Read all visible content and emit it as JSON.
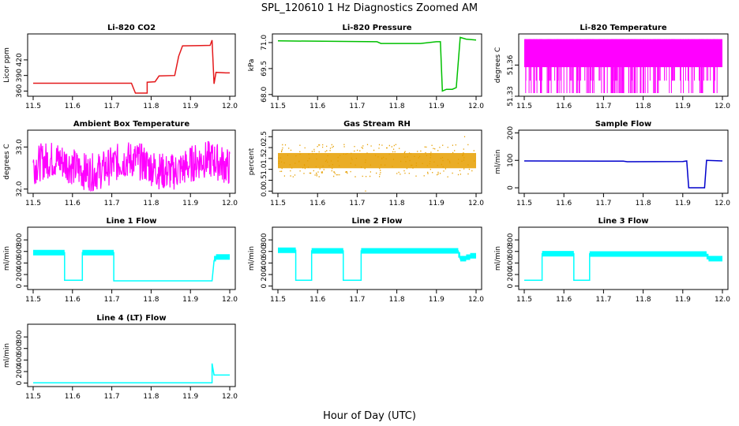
{
  "title": "SPL_120610  1 Hz Diagnostics Zoomed AM",
  "xlabel": "Hour of Day (UTC)",
  "colors": {
    "red": "#e41a1c",
    "green": "#00c000",
    "magenta": "#ff00ff",
    "orange": "#e69f00",
    "blue": "#0000cc",
    "cyan": "#00ffff"
  },
  "chart_data": [
    {
      "type": "line",
      "title": "Li-820 CO2",
      "ylabel": "Licor ppm",
      "xlim": [
        11.48,
        12.02
      ],
      "ylim": [
        350,
        470
      ],
      "xticks": [
        "11.5",
        "11.6",
        "11.7",
        "11.8",
        "11.9",
        "12.0"
      ],
      "yticks": [
        "360",
        "390",
        "420"
      ],
      "color": "red",
      "series": [
        {
          "values": [
            [
              11.5,
              375
            ],
            [
              11.75,
              375
            ],
            [
              11.76,
              356
            ],
            [
              11.79,
              356
            ],
            [
              11.79,
              377
            ],
            [
              11.81,
              378
            ],
            [
              11.82,
              389
            ],
            [
              11.86,
              390
            ],
            [
              11.87,
              427
            ],
            [
              11.88,
              447
            ],
            [
              11.95,
              448
            ],
            [
              11.955,
              458
            ],
            [
              11.96,
              374
            ],
            [
              11.965,
              396
            ],
            [
              11.99,
              395
            ],
            [
              12.0,
              395
            ]
          ]
        }
      ]
    },
    {
      "type": "line",
      "title": "Li-820 Pressure",
      "ylabel": "kPa",
      "xlim": [
        11.48,
        12.02
      ],
      "ylim": [
        67.9,
        71.5
      ],
      "xticks": [
        "11.5",
        "11.6",
        "11.7",
        "11.8",
        "11.9",
        "12.0"
      ],
      "yticks": [
        "68.0",
        "69.5",
        "71.0"
      ],
      "color": "green",
      "series": [
        {
          "values": [
            [
              11.5,
              71.1
            ],
            [
              11.75,
              71.05
            ],
            [
              11.76,
              70.95
            ],
            [
              11.86,
              70.95
            ],
            [
              11.9,
              71.05
            ],
            [
              11.91,
              71.05
            ],
            [
              11.915,
              68.2
            ],
            [
              11.925,
              68.3
            ],
            [
              11.94,
              68.3
            ],
            [
              11.95,
              68.4
            ],
            [
              11.96,
              71.3
            ],
            [
              11.975,
              71.2
            ],
            [
              12.0,
              71.15
            ]
          ]
        }
      ]
    },
    {
      "type": "line",
      "title": "Li-820 Temperature",
      "ylabel": "degrees C",
      "xlim": [
        11.48,
        12.02
      ],
      "ylim": [
        51.33,
        51.39
      ],
      "xticks": [
        "11.5",
        "11.6",
        "11.7",
        "11.8",
        "11.9",
        "12.0"
      ],
      "yticks": [
        "51.33",
        "51.36"
      ],
      "color": "magenta",
      "series": [
        {
          "values": []
        }
      ]
    },
    {
      "type": "line",
      "title": "Ambient Box Temperature",
      "ylabel": "degrees C",
      "xlim": [
        11.48,
        12.02
      ],
      "ylim": [
        31.9,
        33.4
      ],
      "xticks": [
        "11.5",
        "11.6",
        "11.7",
        "11.8",
        "11.9",
        "12.0"
      ],
      "yticks": [
        "32.0",
        "33.0"
      ],
      "color": "magenta",
      "series": [
        {
          "values": []
        }
      ]
    },
    {
      "type": "scatter",
      "title": "Gas Stream RH",
      "ylabel": "percent",
      "xlim": [
        11.48,
        12.02
      ],
      "ylim": [
        -0.1,
        2.8
      ],
      "xticks": [
        "11.5",
        "11.6",
        "11.7",
        "11.8",
        "11.9",
        "12.0"
      ],
      "yticks": [
        "0.0",
        "0.5",
        "1.0",
        "1.5",
        "2.0",
        "2.5"
      ],
      "color": "orange",
      "series": [
        {
          "values": []
        }
      ]
    },
    {
      "type": "line",
      "title": "Sample Flow",
      "ylabel": "ml/min",
      "xlim": [
        11.48,
        12.02
      ],
      "ylim": [
        -20,
        210
      ],
      "xticks": [
        "11.5",
        "11.6",
        "11.7",
        "11.8",
        "11.9",
        "12.0"
      ],
      "yticks": [
        "0",
        "100",
        "200"
      ],
      "color": "blue",
      "series": [
        {
          "values": [
            [
              11.5,
              98
            ],
            [
              11.75,
              97
            ],
            [
              11.76,
              95
            ],
            [
              11.9,
              96
            ],
            [
              11.91,
              98
            ],
            [
              11.915,
              0
            ],
            [
              11.955,
              0
            ],
            [
              11.96,
              100
            ],
            [
              12.0,
              98
            ]
          ]
        }
      ]
    },
    {
      "type": "line",
      "title": "Line 1 Flow",
      "ylabel": "ml/min",
      "xlim": [
        11.48,
        12.02
      ],
      "ylim": [
        -60,
        1020
      ],
      "xticks": [
        "11.5",
        "11.6",
        "11.7",
        "11.8",
        "11.9",
        "12.0"
      ],
      "yticks": [
        "0",
        "200",
        "400",
        "600",
        "800"
      ],
      "color": "cyan",
      "series": [
        {
          "values": [
            [
              11.5,
              580
            ],
            [
              11.58,
              580
            ],
            [
              11.58,
              100
            ],
            [
              11.625,
              100
            ],
            [
              11.625,
              580
            ],
            [
              11.705,
              580
            ],
            [
              11.705,
              90
            ],
            [
              11.955,
              90
            ],
            [
              11.96,
              440
            ],
            [
              11.965,
              510
            ],
            [
              12.0,
              500
            ]
          ]
        }
      ]
    },
    {
      "type": "line",
      "title": "Line 2 Flow",
      "ylabel": "ml/min",
      "xlim": [
        11.48,
        12.02
      ],
      "ylim": [
        -60,
        1020
      ],
      "xticks": [
        "11.5",
        "11.6",
        "11.7",
        "11.8",
        "11.9",
        "12.0"
      ],
      "yticks": [
        "0",
        "200",
        "400",
        "600",
        "800"
      ],
      "color": "cyan",
      "series": [
        {
          "values": [
            [
              11.5,
              620
            ],
            [
              11.545,
              620
            ],
            [
              11.545,
              100
            ],
            [
              11.585,
              100
            ],
            [
              11.585,
              610
            ],
            [
              11.665,
              610
            ],
            [
              11.665,
              100
            ],
            [
              11.71,
              100
            ],
            [
              11.71,
              610
            ],
            [
              11.955,
              610
            ],
            [
              11.96,
              470
            ],
            [
              11.975,
              480
            ],
            [
              11.985,
              520
            ],
            [
              12.0,
              530
            ]
          ]
        }
      ]
    },
    {
      "type": "line",
      "title": "Line 3 Flow",
      "ylabel": "ml/min",
      "xlim": [
        11.48,
        12.02
      ],
      "ylim": [
        -60,
        1020
      ],
      "xticks": [
        "11.5",
        "11.6",
        "11.7",
        "11.8",
        "11.9",
        "12.0"
      ],
      "yticks": [
        "0",
        "200",
        "400",
        "600",
        "800"
      ],
      "color": "cyan",
      "series": [
        {
          "values": [
            [
              11.5,
              100
            ],
            [
              11.545,
              100
            ],
            [
              11.545,
              560
            ],
            [
              11.625,
              560
            ],
            [
              11.625,
              100
            ],
            [
              11.665,
              100
            ],
            [
              11.665,
              560
            ],
            [
              11.96,
              550
            ],
            [
              11.965,
              470
            ],
            [
              11.98,
              480
            ],
            [
              12.0,
              470
            ]
          ]
        }
      ]
    },
    {
      "type": "line",
      "title": "Line 4 (LT) Flow",
      "ylabel": "ml/min",
      "xlim": [
        11.48,
        12.02
      ],
      "ylim": [
        -60,
        1020
      ],
      "xticks": [
        "11.5",
        "11.6",
        "11.7",
        "11.8",
        "11.9",
        "12.0"
      ],
      "yticks": [
        "0",
        "200",
        "400",
        "600",
        "800"
      ],
      "color": "cyan",
      "series": [
        {
          "values": [
            [
              11.5,
              5
            ],
            [
              11.955,
              5
            ],
            [
              11.955,
              340
            ],
            [
              11.96,
              140
            ],
            [
              12.0,
              140
            ]
          ]
        }
      ]
    }
  ]
}
